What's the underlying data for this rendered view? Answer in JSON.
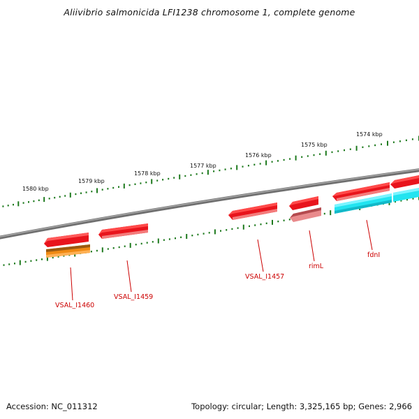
{
  "title": "Aliivibrio salmonicida LFI1238 chromosome 1, complete genome",
  "footer": {
    "accession": "Accession: NC_011312",
    "summary": "Topology: circular; Length: 3,325,165 bp; Genes: 2,966"
  },
  "colors": {
    "backbone": "#8a8a8a",
    "ruler_tick": "#1e7a1e",
    "gene_red": "#e8141c",
    "gene_pink": "#e98a8c",
    "gene_orange": "#f08a12",
    "gene_cyan": "#22e4f0",
    "label_red": "#cc0000"
  },
  "position_labels": [
    "1580 kbp",
    "1579 kbp",
    "1578 kbp",
    "1577 kbp",
    "1576 kbp",
    "1575 kbp",
    "1574 kbp"
  ],
  "genes": [
    {
      "name": "VSAL_I1460",
      "color": "gene_orange",
      "strand": "reverse",
      "labeled": true
    },
    {
      "name": "VSAL_I1459",
      "color": "gene_red",
      "strand": "reverse",
      "labeled": true
    },
    {
      "name": "VSAL_I1457",
      "color": "gene_red",
      "strand": "reverse",
      "labeled": true
    },
    {
      "name": "rimL",
      "color": "gene_pink",
      "strand": "reverse",
      "labeled": true
    },
    {
      "name": "fdnI",
      "color": "gene_cyan",
      "strand": "forward",
      "labeled": true
    }
  ]
}
